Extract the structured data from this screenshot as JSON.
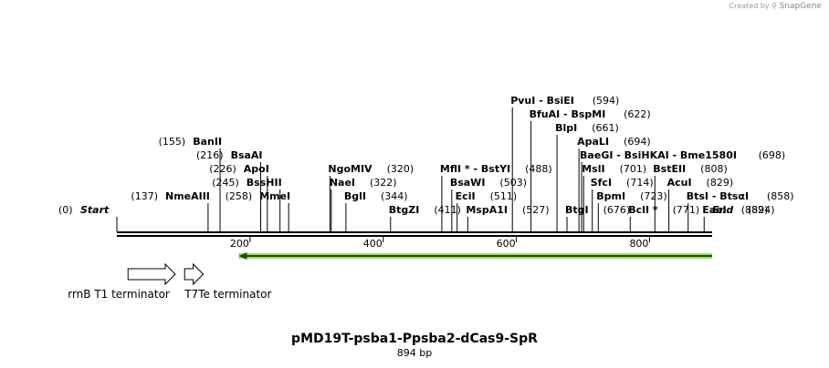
{
  "credit": {
    "prefix": "Created by",
    "brand": "SnapGene"
  },
  "plasmid": {
    "name": "pMD19T-psba1-Ppsba2-dCas9-SpR",
    "length_label": "894 bp",
    "length": 894
  },
  "backbone": {
    "start_label": "Start",
    "start_pos": "(0)",
    "end_label": "End",
    "end_pos": "(894)",
    "end": 894
  },
  "ruler_ticks": [
    {
      "value": 200,
      "label": "200"
    },
    {
      "value": 400,
      "label": "400"
    },
    {
      "value": 600,
      "label": "600"
    },
    {
      "value": 800,
      "label": "800"
    }
  ],
  "sites": [
    {
      "name": "NmeAIII",
      "pos": "(137)",
      "cut": 137,
      "side": "left"
    },
    {
      "name": "BanII",
      "pos": "(155)",
      "cut": 155,
      "side": "left"
    },
    {
      "name": "BsaAI",
      "pos": "(216)",
      "cut": 216,
      "side": "left"
    },
    {
      "name": "ApoI",
      "pos": "(226)",
      "cut": 226,
      "side": "left"
    },
    {
      "name": "BssHII",
      "pos": "(245)",
      "cut": 245,
      "side": "left"
    },
    {
      "name": "MmeI",
      "pos": "(258)",
      "cut": 258,
      "side": "left"
    },
    {
      "name": "NgoMIV",
      "pos": "(320)",
      "cut": 320,
      "side": "right"
    },
    {
      "name": "NaeI",
      "pos": "(322)",
      "cut": 322,
      "side": "right"
    },
    {
      "name": "BglI",
      "pos": "(344)",
      "cut": 344,
      "side": "right"
    },
    {
      "name": "BtgZI",
      "pos": "(411)",
      "cut": 411,
      "side": "right"
    },
    {
      "name": "MflI * - BstYI",
      "pos": "(488)",
      "cut": 488,
      "side": "right"
    },
    {
      "name": "BsaWI",
      "pos": "(503)",
      "cut": 503,
      "side": "right"
    },
    {
      "name": "EciI",
      "pos": "(511)",
      "cut": 511,
      "side": "right"
    },
    {
      "name": "MspA1I",
      "pos": "(527)",
      "cut": 527,
      "side": "right"
    },
    {
      "name": "PvuI  - BsiEI",
      "pos": "(594)",
      "cut": 594,
      "side": "right"
    },
    {
      "name": "BfuAI  - BspMI",
      "pos": "(622)",
      "cut": 622,
      "side": "right"
    },
    {
      "name": "BlpI",
      "pos": "(661)",
      "cut": 661,
      "side": "right"
    },
    {
      "name": "BtgI",
      "pos": "(676)",
      "cut": 676,
      "side": "right"
    },
    {
      "name": "ApaLI",
      "pos": "(694)",
      "cut": 694,
      "side": "right"
    },
    {
      "name": "BaeGI  - BsiHKAI  - Bme1580I",
      "pos": "(698)",
      "cut": 698,
      "side": "right"
    },
    {
      "name": "MslI",
      "pos": "(701)",
      "cut": 701,
      "side": "right"
    },
    {
      "name": "SfcI",
      "pos": "(714)",
      "cut": 714,
      "side": "right"
    },
    {
      "name": "BpmI",
      "pos": "(723)",
      "cut": 723,
      "side": "right"
    },
    {
      "name": "BclI *",
      "pos": "(771)",
      "cut": 771,
      "side": "right"
    },
    {
      "name": "BstEII",
      "pos": "(808)",
      "cut": 808,
      "side": "right"
    },
    {
      "name": "AcuI",
      "pos": "(829)",
      "cut": 829,
      "side": "right"
    },
    {
      "name": "BtsI  - BtsαI",
      "pos": "(858)",
      "cut": 858,
      "side": "right"
    },
    {
      "name": "EaeI",
      "pos": "(882)",
      "cut": 882,
      "side": "right"
    }
  ],
  "features": [
    {
      "name": "rrnB T1 terminator",
      "start": 25,
      "end": 96,
      "strand": "+"
    },
    {
      "name": "T7Te terminator",
      "start": 110,
      "end": 138,
      "strand": "+"
    },
    {
      "name": "",
      "start": 183,
      "end": 894,
      "strand": "-",
      "color": "#9ee05a"
    }
  ],
  "colors": {
    "backbone": "#000000",
    "line": "#000000",
    "feature_fill": "#ffffff",
    "primer_green": "#9ee05a"
  }
}
